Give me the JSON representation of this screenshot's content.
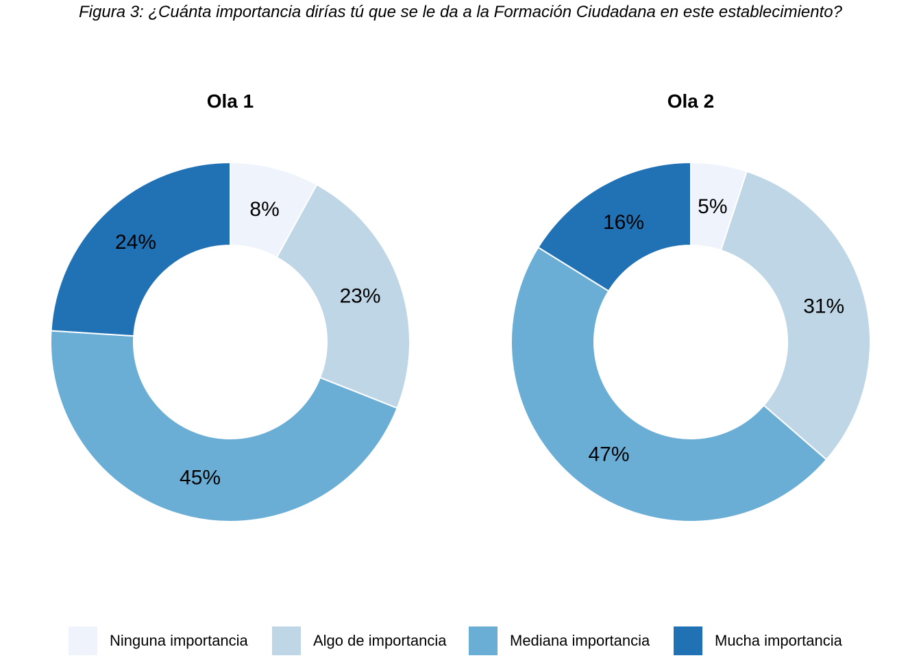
{
  "figure_title": "Figura 3: ¿Cuánta importancia dirías tú que se le da a la Formación Ciudadana en este establecimiento?",
  "categories": [
    "Ninguna importancia",
    "Algo de importancia",
    "Mediana importancia",
    "Mucha importancia"
  ],
  "colors": [
    "#eef3fc",
    "#bfd6e6",
    "#6aaed6",
    "#2171b5"
  ],
  "chart_data": [
    {
      "type": "pie",
      "title": "Ola 1",
      "categories": [
        "Ninguna importancia",
        "Algo de importancia",
        "Mediana importancia",
        "Mucha importancia"
      ],
      "values": [
        8,
        23,
        45,
        24
      ],
      "labels": [
        "8%",
        "23%",
        "45%",
        "24%"
      ]
    },
    {
      "type": "pie",
      "title": "Ola 2",
      "categories": [
        "Ninguna importancia",
        "Algo de importancia",
        "Mediana importancia",
        "Mucha importancia"
      ],
      "values": [
        5,
        31,
        47,
        16
      ],
      "labels": [
        "5%",
        "31%",
        "47%",
        "16%"
      ]
    }
  ],
  "legend_position": "bottom"
}
